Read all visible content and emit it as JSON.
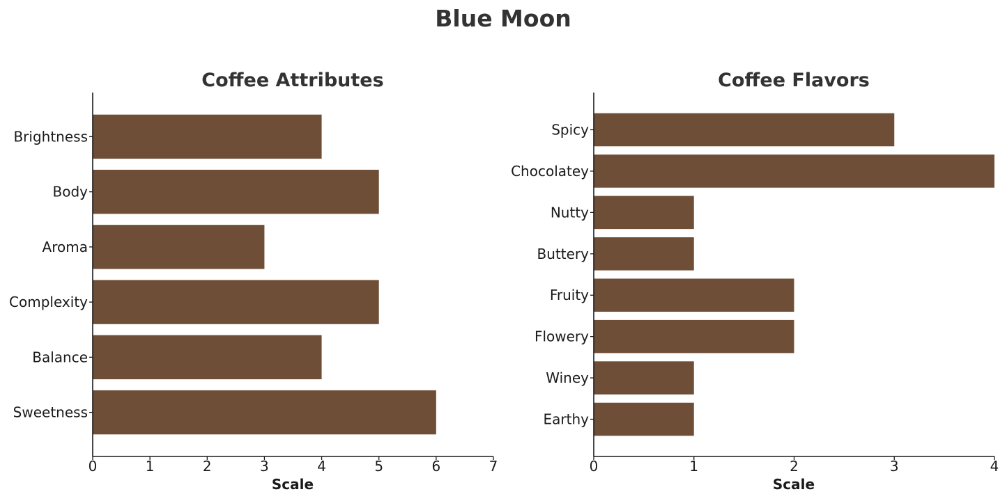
{
  "title": "Blue Moon",
  "colors": {
    "bar": "#6f4e37",
    "text": "#333333",
    "axis": "#1a1a1a"
  },
  "chart_data": [
    {
      "type": "bar",
      "orientation": "horizontal",
      "title": "Coffee Attributes",
      "xlabel": "Scale",
      "ylabel": "",
      "categories": [
        "Brightness",
        "Body",
        "Aroma",
        "Complexity",
        "Balance",
        "Sweetness"
      ],
      "values": [
        4,
        5,
        3,
        5,
        4,
        6
      ],
      "xlim": [
        0,
        7
      ],
      "xticks": [
        0,
        1,
        2,
        3,
        4,
        5,
        6,
        7
      ],
      "grid": false,
      "legend": "none"
    },
    {
      "type": "bar",
      "orientation": "horizontal",
      "title": "Coffee Flavors",
      "xlabel": "Scale",
      "ylabel": "",
      "categories": [
        "Spicy",
        "Chocolatey",
        "Nutty",
        "Buttery",
        "Fruity",
        "Flowery",
        "Winey",
        "Earthy"
      ],
      "values": [
        3,
        4,
        1,
        1,
        2,
        2,
        1,
        1
      ],
      "xlim": [
        0,
        4
      ],
      "xticks": [
        0,
        1,
        2,
        3,
        4
      ],
      "grid": false,
      "legend": "none"
    }
  ]
}
